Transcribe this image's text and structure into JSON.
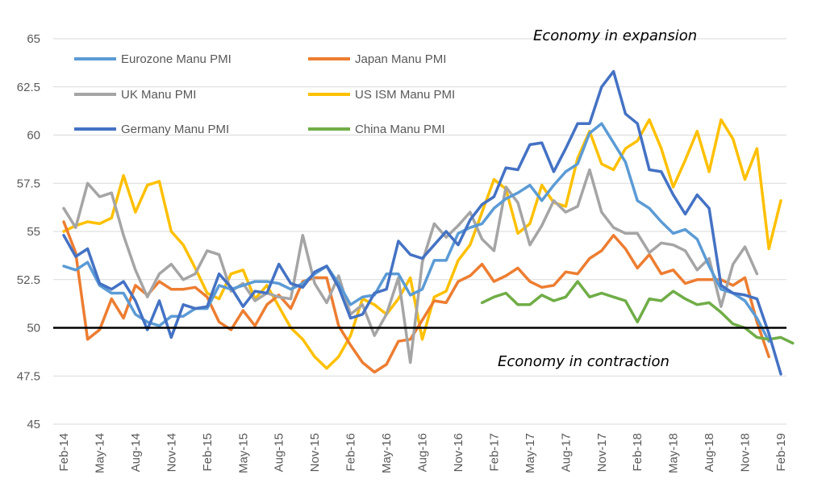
{
  "chart_data": {
    "type": "line",
    "title": "",
    "xlabel": "",
    "ylabel": "",
    "ylim": [
      45,
      65
    ],
    "yticks": [
      "45",
      "47.5",
      "50",
      "52.5",
      "55",
      "57.5",
      "60",
      "62.5",
      "65"
    ],
    "xticks": [
      "Feb-14",
      "May-14",
      "Aug-14",
      "Nov-14",
      "Feb-15",
      "May-15",
      "Aug-15",
      "Nov-15",
      "Feb-16",
      "May-16",
      "Aug-16",
      "Nov-16",
      "Feb-17",
      "May-17",
      "Aug-17",
      "Nov-17",
      "Feb-18",
      "May-18",
      "Aug-18",
      "Nov-18",
      "Feb-19"
    ],
    "grid": true,
    "legend_position": "top-left",
    "reference_line": 50,
    "annotations": {
      "expansion": "Economy in expansion",
      "contraction": "Economy in contraction"
    },
    "series": [
      {
        "name": "Eurozone Manu PMI",
        "color": "#5b9bd5",
        "values": [
          53.2,
          53.0,
          53.4,
          52.2,
          51.8,
          51.8,
          50.7,
          50.3,
          50.1,
          50.6,
          50.6,
          51.0,
          51.0,
          52.2,
          52.0,
          52.2,
          52.4,
          52.4,
          52.3,
          52.0,
          52.3,
          52.8,
          53.2,
          52.3,
          51.2,
          51.6,
          51.7,
          52.8,
          52.8,
          51.7,
          52.0,
          53.5,
          53.5,
          54.9,
          55.2,
          55.4,
          56.2,
          56.7,
          57.0,
          57.4,
          56.6,
          57.4,
          58.1,
          58.5,
          60.1,
          60.6,
          59.6,
          58.6,
          56.6,
          56.2,
          55.5,
          54.9,
          55.1,
          54.6,
          53.2,
          52.0,
          51.8,
          51.4,
          50.5,
          49.3
        ]
      },
      {
        "name": "Japan Manu PMI",
        "color": "#ed7d31",
        "values": [
          55.5,
          53.9,
          49.4,
          49.9,
          51.5,
          50.5,
          52.2,
          51.7,
          52.4,
          52.0,
          52.0,
          52.1,
          51.6,
          50.3,
          49.9,
          50.9,
          50.1,
          51.2,
          51.7,
          51.0,
          52.4,
          52.6,
          52.6,
          50.1,
          49.1,
          48.2,
          47.7,
          48.1,
          49.3,
          49.4,
          50.4,
          51.4,
          51.3,
          52.4,
          52.7,
          53.3,
          52.4,
          52.7,
          53.1,
          52.4,
          52.1,
          52.2,
          52.9,
          52.8,
          53.6,
          54.0,
          54.8,
          54.1,
          53.1,
          53.8,
          52.8,
          53.0,
          52.3,
          52.5,
          52.5,
          52.5,
          52.2,
          52.6,
          50.3,
          48.5
        ]
      },
      {
        "name": "UK Manu PMI",
        "color": "#a5a5a5",
        "values": [
          56.2,
          55.2,
          57.5,
          56.8,
          57.0,
          54.8,
          53.0,
          51.6,
          52.8,
          53.3,
          52.5,
          52.8,
          54.0,
          53.8,
          51.9,
          52.3,
          51.4,
          51.8,
          51.6,
          51.5,
          54.8,
          52.3,
          51.3,
          52.7,
          50.7,
          51.2,
          49.6,
          50.7,
          52.6,
          48.2,
          53.4,
          55.4,
          54.7,
          55.3,
          56.0,
          54.6,
          54.0,
          57.3,
          56.5,
          54.3,
          55.3,
          56.6,
          56.0,
          56.3,
          58.2,
          56.0,
          55.2,
          54.9,
          54.9,
          53.9,
          54.4,
          54.3,
          54.0,
          53.0,
          53.6,
          51.1,
          53.3,
          54.2,
          52.8
        ]
      },
      {
        "name": "US ISM Manu PMI",
        "color": "#ffc000",
        "values": [
          55.0,
          55.3,
          55.5,
          55.4,
          55.7,
          57.9,
          56.0,
          57.4,
          57.6,
          55.0,
          54.3,
          53.1,
          51.8,
          51.5,
          52.8,
          53.0,
          51.5,
          52.2,
          51.1,
          50.0,
          49.4,
          48.5,
          47.9,
          48.5,
          49.6,
          51.5,
          51.2,
          50.7,
          51.5,
          52.6,
          49.4,
          51.6,
          51.9,
          53.5,
          54.3,
          56.0,
          57.7,
          57.2,
          54.9,
          55.4,
          57.4,
          56.5,
          56.3,
          58.8,
          60.2,
          58.5,
          58.2,
          59.3,
          59.7,
          60.8,
          59.3,
          57.3,
          58.7,
          60.2,
          58.1,
          60.8,
          59.8,
          57.7,
          59.3,
          54.1,
          56.6
        ]
      },
      {
        "name": "Germany Manu PMI",
        "color": "#4472c4",
        "values": [
          54.8,
          53.7,
          54.1,
          52.3,
          52.0,
          52.4,
          51.4,
          49.9,
          51.4,
          49.5,
          51.2,
          51.0,
          51.1,
          52.8,
          52.1,
          51.1,
          51.9,
          51.8,
          53.3,
          52.3,
          52.1,
          52.9,
          53.2,
          52.1,
          50.5,
          50.7,
          51.8,
          52.0,
          54.5,
          53.8,
          53.6,
          54.3,
          55.0,
          54.3,
          55.6,
          56.4,
          56.8,
          58.3,
          58.2,
          59.5,
          59.6,
          58.1,
          59.3,
          60.6,
          60.6,
          62.5,
          63.3,
          61.1,
          60.6,
          58.2,
          58.1,
          56.9,
          55.9,
          56.9,
          56.2,
          52.2,
          51.8,
          51.7,
          51.5,
          49.7,
          47.6
        ]
      },
      {
        "name": "China Manu PMI",
        "color": "#70ad47",
        "values": [
          51.3,
          51.6,
          51.8,
          51.2,
          51.2,
          51.7,
          51.4,
          51.6,
          52.4,
          51.6,
          51.8,
          51.6,
          51.4,
          50.3,
          51.5,
          51.4,
          51.9,
          51.5,
          51.2,
          51.3,
          50.8,
          50.2,
          50.0,
          49.5,
          49.4,
          49.5,
          49.2
        ]
      }
    ]
  }
}
